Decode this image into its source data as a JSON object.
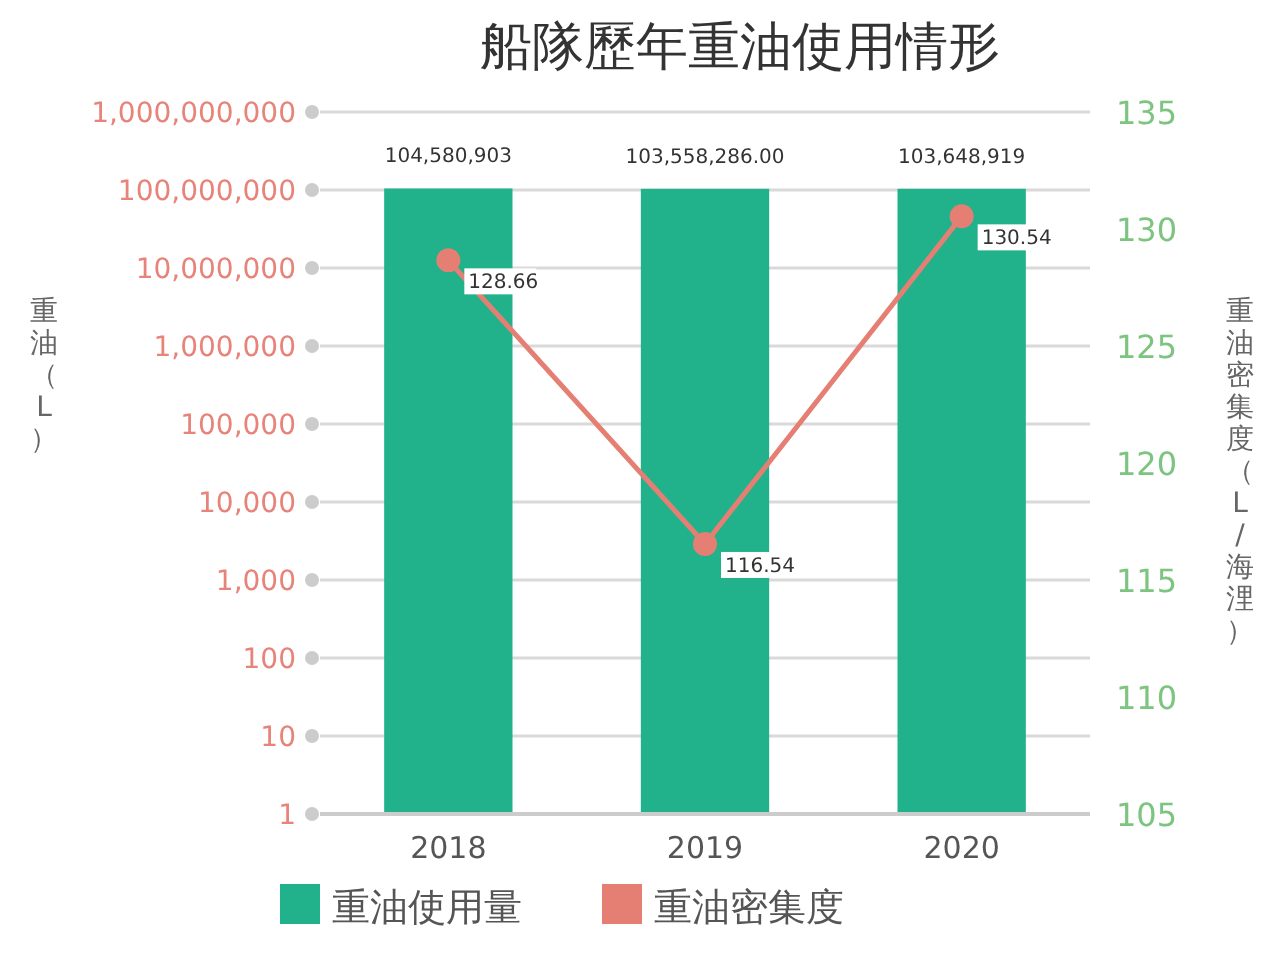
{
  "chart_data": {
    "type": "bar",
    "title": "船隊歷年重油使用情形",
    "ylabel": "重油（L）",
    "y2label": "重油密集度（L/海浬）",
    "categories": [
      "2018",
      "2019",
      "2020"
    ],
    "series": [
      {
        "name": "重油使用量",
        "color": "#21b28c",
        "values": [
          104580903,
          103558286,
          103648919
        ],
        "value_labels": [
          "104,580,903",
          "103,558,286.00",
          "103,648,919"
        ]
      },
      {
        "name": "重油密集度",
        "type": "line",
        "axis": "y2",
        "color": "#e57f73",
        "values": [
          128.66,
          116.54,
          130.54
        ],
        "value_labels": [
          "128.66",
          "116.54",
          "130.54"
        ]
      }
    ],
    "log": "y",
    "ylim": [
      1,
      1000000000
    ],
    "yticks": [
      {
        "value": 1,
        "label": "1"
      },
      {
        "value": 10,
        "label": "10"
      },
      {
        "value": 100,
        "label": "100"
      },
      {
        "value": 1000,
        "label": "1,000"
      },
      {
        "value": 10000,
        "label": "10,000"
      },
      {
        "value": 100000,
        "label": "100,000"
      },
      {
        "value": 1000000,
        "label": "1,000,000"
      },
      {
        "value": 10000000,
        "label": "10,000,000"
      },
      {
        "value": 100000000,
        "label": "100,000,000"
      },
      {
        "value": 1000000000,
        "label": "1,000,000,000"
      }
    ],
    "y2lim": [
      105,
      135
    ],
    "y2ticks": [
      105,
      110,
      115,
      120,
      125,
      130,
      135
    ],
    "grid": "y",
    "legend": "bottom",
    "marker": "circle"
  }
}
